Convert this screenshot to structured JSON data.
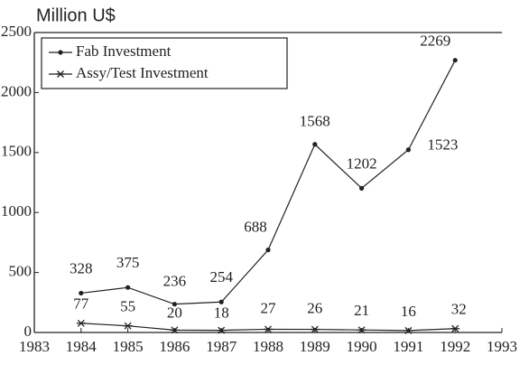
{
  "chart_data": {
    "type": "line",
    "title": "Million U$",
    "x": [
      1984,
      1985,
      1986,
      1987,
      1988,
      1989,
      1990,
      1991,
      1992
    ],
    "series": [
      {
        "name": "Fab Investment",
        "color": "#222222",
        "marker": "dot",
        "values": [
          328,
          375,
          236,
          254,
          688,
          1568,
          1202,
          1523,
          2269
        ]
      },
      {
        "name": "Assy/Test Investment",
        "color": "#222222",
        "marker": "star",
        "values": [
          77,
          55,
          20,
          18,
          27,
          26,
          21,
          16,
          32
        ]
      }
    ],
    "xlim": [
      1983,
      1993
    ],
    "xticks": [
      1983,
      1984,
      1985,
      1986,
      1987,
      1988,
      1989,
      1990,
      1991,
      1992,
      1993
    ],
    "ylim": [
      0,
      2500
    ],
    "yticks": [
      0,
      500,
      1000,
      1500,
      2000,
      2500
    ],
    "legend": "upper left"
  }
}
